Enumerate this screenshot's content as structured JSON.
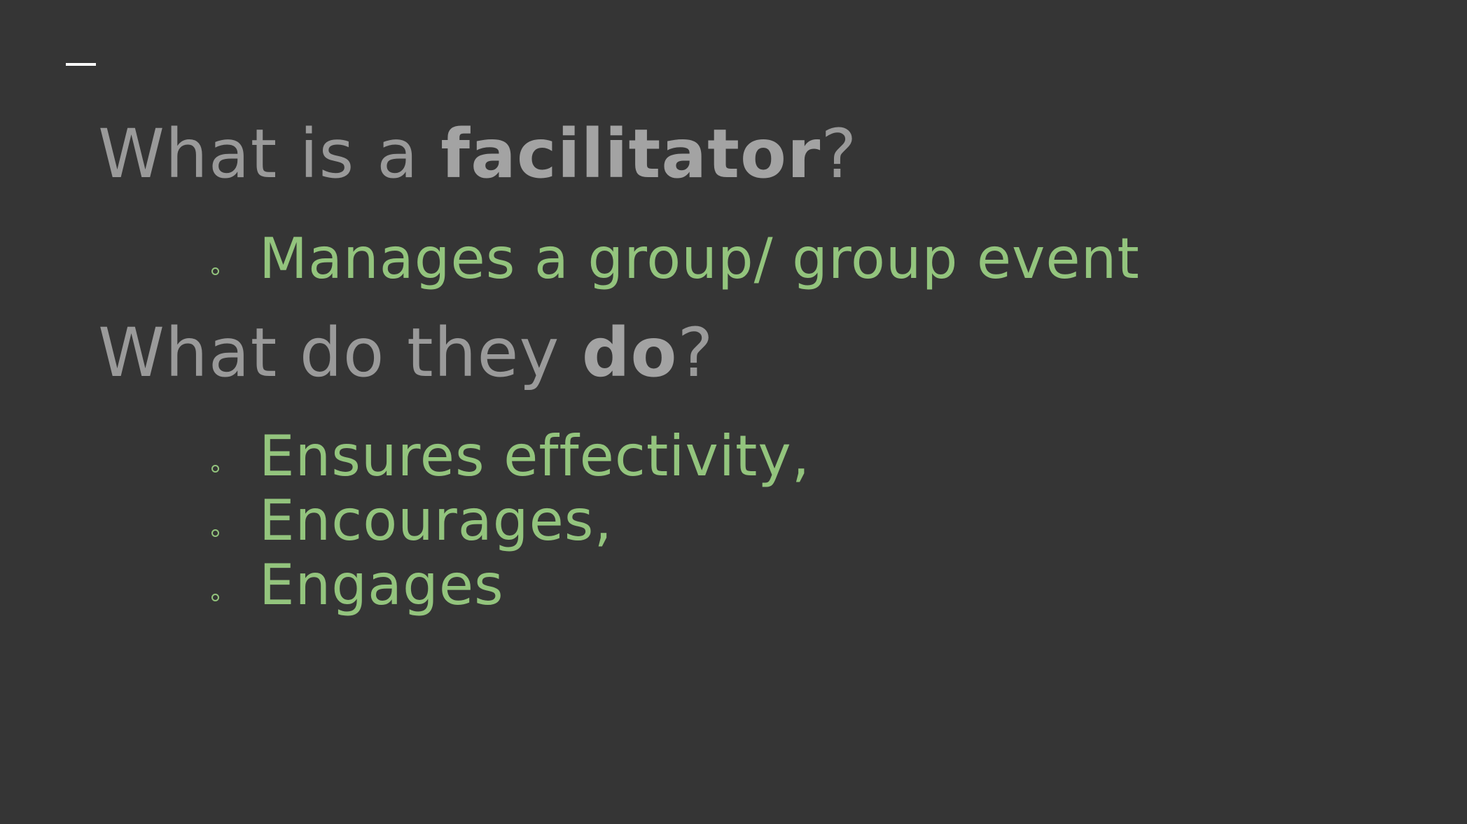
{
  "slide": {
    "heading1": {
      "prefix": "What is a ",
      "emphasis": "facilitator",
      "suffix": "?"
    },
    "bullets1": [
      "Manages a group/ group event"
    ],
    "heading2": {
      "prefix": "What do they ",
      "emphasis": "do",
      "suffix": "?"
    },
    "bullets2": [
      "Ensures effectivity,",
      "Encourages,",
      "Engages"
    ]
  },
  "colors": {
    "background": "#353535",
    "heading": "#9a9a9a",
    "bullet_text": "#93c47d",
    "accent_dash": "#ffffff"
  }
}
